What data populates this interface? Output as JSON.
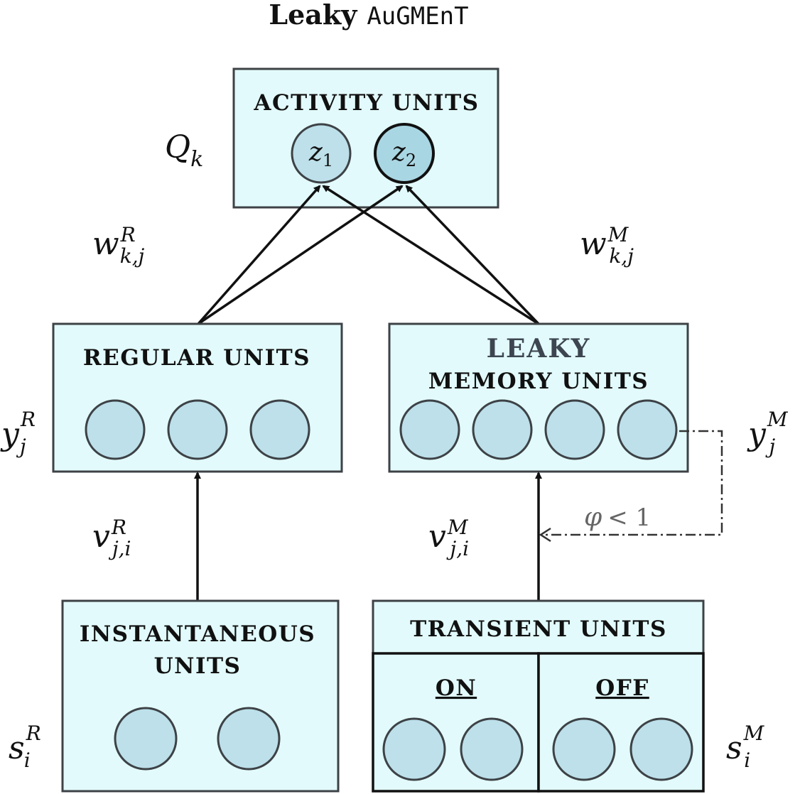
{
  "title": {
    "word": "Leaky",
    "code": "AuGMEnT"
  },
  "activity_box": {
    "label": "ACTIVITY UNITS",
    "units": [
      {
        "var": "z",
        "sub": "1"
      },
      {
        "var": "z",
        "sub": "2"
      }
    ],
    "side_label": {
      "var": "Q",
      "sub": "k"
    }
  },
  "weights_regular": {
    "var": "w",
    "sup": "R",
    "sub": "k,j"
  },
  "weights_memory": {
    "var": "w",
    "sup": "M",
    "sub": "k,j"
  },
  "regular_box": {
    "label": "REGULAR UNITS",
    "side_label": {
      "var": "y",
      "sup": "R",
      "sub": "j"
    }
  },
  "memory_box": {
    "label_line1": "LEAKY",
    "label_line2": "MEMORY UNITS",
    "side_label": {
      "var": "y",
      "sup": "M",
      "sub": "j"
    }
  },
  "input_weights_regular": {
    "var": "v",
    "sup": "R",
    "sub": "j,i"
  },
  "input_weights_memory": {
    "var": "v",
    "sup": "M",
    "sub": "j,i"
  },
  "leak": {
    "var": "φ",
    "rest": "< 1"
  },
  "instantaneous_box": {
    "label_line1": "INSTANTANEOUS",
    "label_line2": "UNITS",
    "side_label": {
      "var": "s",
      "sup": "R",
      "sub": "i"
    }
  },
  "transient_box": {
    "label": "TRANSIENT UNITS",
    "on_label": "ON",
    "off_label": "OFF",
    "side_label": {
      "var": "s",
      "sup": "M",
      "sub": "i"
    }
  },
  "colors": {
    "box_fill": "#e2fafb",
    "unit_fill": "#bde0ea",
    "stroke": "#3d4246"
  }
}
